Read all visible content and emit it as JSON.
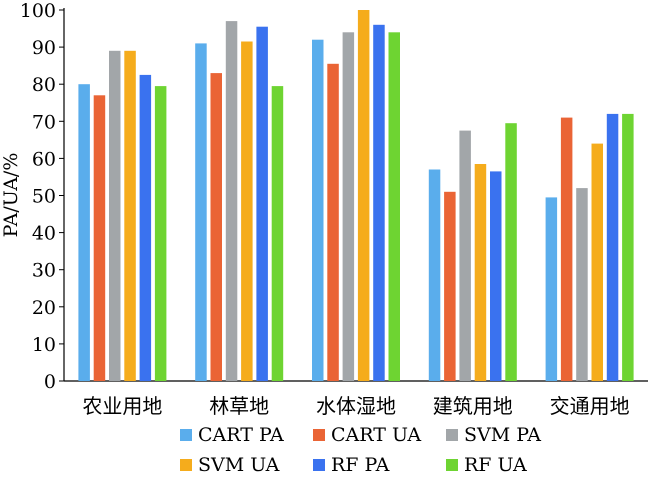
{
  "chart_data": {
    "type": "bar",
    "title": "",
    "xlabel": "",
    "ylabel": "PA/UA/%",
    "ylim": [
      0,
      100
    ],
    "yticks": [
      0,
      10,
      20,
      30,
      40,
      50,
      60,
      70,
      80,
      90,
      100
    ],
    "grid": false,
    "legend_position": "bottom",
    "categories": [
      "农业用地",
      "林草地",
      "水体湿地",
      "建筑用地",
      "交通用地"
    ],
    "series": [
      {
        "name": "CART PA",
        "color": "#5aadec",
        "values": [
          80,
          91,
          92,
          57,
          49.5
        ]
      },
      {
        "name": "CART UA",
        "color": "#ea6435",
        "values": [
          77,
          83,
          85.5,
          51,
          71
        ]
      },
      {
        "name": "SVM PA",
        "color": "#a2a6a9",
        "values": [
          89,
          97,
          94,
          67.5,
          52
        ]
      },
      {
        "name": "SVM UA",
        "color": "#f5ac1c",
        "values": [
          89,
          91.5,
          100,
          58.5,
          64
        ]
      },
      {
        "name": "RF PA",
        "color": "#3a72ef",
        "values": [
          82.5,
          95.5,
          96,
          56.5,
          72
        ]
      },
      {
        "name": "RF UA",
        "color": "#6ed432",
        "values": [
          79.5,
          79.5,
          94,
          69.5,
          72
        ]
      }
    ]
  }
}
